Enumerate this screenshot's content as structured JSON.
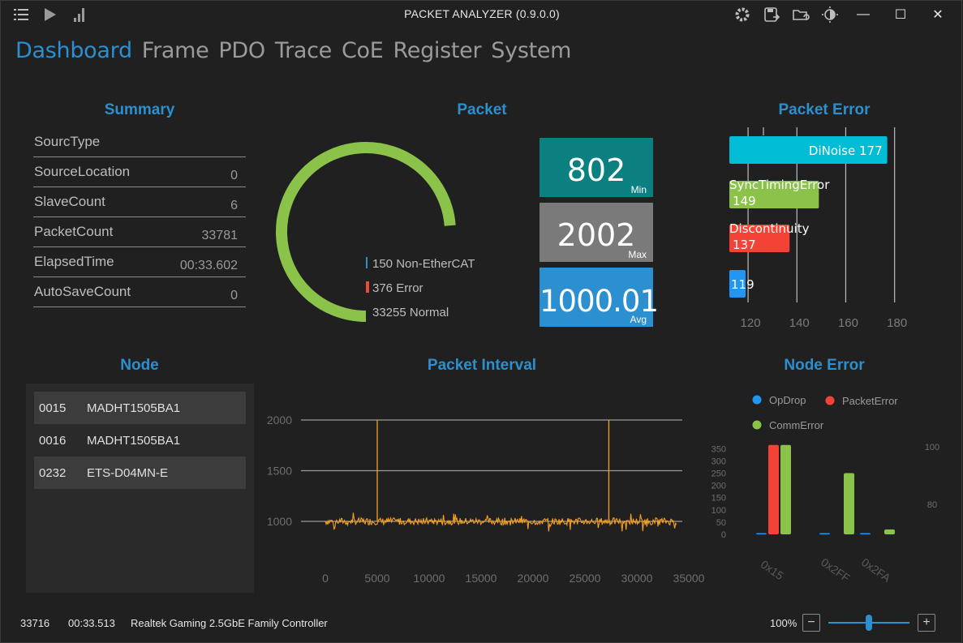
{
  "titlebar": {
    "title": "PACKET ANALYZER (0.9.0.0)",
    "left_icons": [
      "menu-list-icon",
      "play-icon",
      "signal-bars-icon"
    ],
    "right_icons": [
      "gear-icon",
      "save-export-icon",
      "folder-refresh-icon",
      "theme-contrast-icon"
    ],
    "minimize": "—",
    "maximize": "☐",
    "close": "✕"
  },
  "tabs": [
    "Dashboard",
    "Frame",
    "PDO",
    "Trace",
    "CoE",
    "Register",
    "System"
  ],
  "active_tab": "Dashboard",
  "summary": {
    "title": "Summary",
    "rows": [
      {
        "label": "SourcType",
        "value": ""
      },
      {
        "label": "SourceLocation",
        "value": "0"
      },
      {
        "label": "SlaveCount",
        "value": "6"
      },
      {
        "label": "PacketCount",
        "value": "33781"
      },
      {
        "label": "ElapsedTime",
        "value": "00:33.602"
      },
      {
        "label": "AutoSaveCount",
        "value": "0"
      }
    ]
  },
  "packet": {
    "title": "Packet",
    "legend": [
      {
        "text": "150 Non-EtherCAT",
        "color": "#2b8fd0"
      },
      {
        "text": "376 Error",
        "color": "#e74c3c"
      },
      {
        "text": "33255 Normal",
        "color": "#8bc34a"
      }
    ],
    "gauge_fraction": 0.984,
    "stats": [
      {
        "value": "802",
        "label": "Min",
        "color": "#0a8080"
      },
      {
        "value": "2002",
        "label": "Max",
        "color": "#7a7a7a"
      },
      {
        "value": "1000.01",
        "label": "Avg",
        "color": "#2b8fd0"
      }
    ]
  },
  "packet_error": {
    "title": "Packet Error",
    "bars": [
      {
        "label": "DiNoise",
        "value": 177,
        "color": "#00bcd4"
      },
      {
        "label": "SyncTimingError",
        "value": 149,
        "color": "#8bc34a"
      },
      {
        "label": "Discontinuity",
        "value": 137,
        "color": "#f44336"
      },
      {
        "label": "",
        "value": 119,
        "color": "#2196f3"
      }
    ],
    "ticks": [
      "120",
      "140",
      "160",
      "180"
    ]
  },
  "node": {
    "title": "Node",
    "rows": [
      {
        "id": "0015",
        "name": "MADHT1505BA1"
      },
      {
        "id": "0016",
        "name": "MADHT1505BA1"
      },
      {
        "id": "0232",
        "name": "ETS-D04MN-E"
      }
    ]
  },
  "chart_data": [
    {
      "type": "line",
      "title": "Packet Interval",
      "x_ticks": [
        "0",
        "5000",
        "10000",
        "15000",
        "20000",
        "25000",
        "30000",
        "35000"
      ],
      "y_ticks": [
        "1000",
        "1500",
        "2000"
      ],
      "xlim": [
        0,
        35000
      ],
      "ylim": [
        800,
        2100
      ],
      "series": [
        {
          "color": "#f5a020",
          "baseline": 1000,
          "spikes_x": [
            5000,
            27300
          ],
          "spike_y": 2000
        }
      ]
    },
    {
      "type": "bar",
      "title": "Node Error",
      "categories": [
        "0x15",
        "0x2FF",
        "0x2FA"
      ],
      "series": [
        {
          "name": "OpDrop",
          "color": "#2196f3",
          "values": [
            0,
            0,
            0
          ]
        },
        {
          "name": "PacketError",
          "color": "#f44336",
          "values": [
            365,
            0,
            0
          ]
        },
        {
          "name": "CommError",
          "color": "#8bc34a",
          "values": [
            365,
            250,
            20
          ]
        }
      ],
      "y_ticks": [
        "0",
        "50",
        "100",
        "150",
        "200",
        "250",
        "300",
        "350"
      ],
      "y2_ticks": [
        "80",
        "100"
      ]
    }
  ],
  "statusbar": {
    "count": "33716",
    "time": "00:33.513",
    "adapter": "Realtek Gaming 2.5GbE Family Controller",
    "zoom": "100%",
    "zoom_minus": "−",
    "zoom_plus": "+",
    "zoom_level": 0.5
  }
}
